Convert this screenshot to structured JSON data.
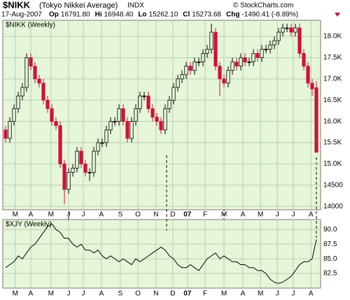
{
  "header": {
    "symbol": "$NIKK",
    "name": "(Tokyo Nikkei Average)",
    "exchange": "INDX",
    "watermark": "© StockCharts.com",
    "date": "17-Aug-2007",
    "quote": [
      {
        "label": "Op",
        "value": "16791.80"
      },
      {
        "label": "Hi",
        "value": "16948.40"
      },
      {
        "label": "Lo",
        "value": "15262.10"
      },
      {
        "label": "Cl",
        "value": "15273.68"
      },
      {
        "label": "Chg",
        "value": "-1490.41 (-8.89%)"
      }
    ]
  },
  "chart_data": [
    {
      "type": "candlestick",
      "title": "$NIKK (Weekly)",
      "up_color": "#000000",
      "down_color": "#d0103a",
      "grid": true,
      "open": [
        15800,
        15600,
        16000,
        16300,
        16600,
        16800,
        17500,
        17300,
        17000,
        16900,
        16500,
        16300,
        16000,
        15900,
        15000,
        14400,
        14800,
        14900,
        15300,
        15000,
        14800,
        14800,
        15300,
        15500,
        15500,
        15800,
        16000,
        16000,
        16300,
        16000,
        15600,
        16000,
        16300,
        16600,
        16600,
        16300,
        16100,
        16000,
        15800,
        16300,
        16500,
        16800,
        17000,
        17100,
        17300,
        17200,
        17400,
        17400,
        17600,
        17700,
        18100,
        17300,
        17000,
        16900,
        17200,
        17400,
        17300,
        17500,
        17400,
        17400,
        17600,
        17500,
        17700,
        17700,
        17800,
        17900,
        18100,
        18200,
        18200,
        18100,
        18200,
        17600,
        17300,
        16900,
        16791.8
      ],
      "high": [
        15900,
        16100,
        16400,
        16700,
        16900,
        17600,
        17600,
        17400,
        17100,
        17000,
        16600,
        16400,
        16100,
        16000,
        15100,
        14900,
        15000,
        15400,
        15400,
        15100,
        14900,
        15400,
        15600,
        15600,
        15900,
        16100,
        16100,
        16400,
        16400,
        16100,
        16100,
        16400,
        16700,
        16700,
        16700,
        16400,
        16200,
        16100,
        16400,
        16600,
        16900,
        17100,
        17200,
        17400,
        17400,
        17500,
        17500,
        17700,
        17800,
        18300,
        18200,
        17400,
        17100,
        17300,
        17500,
        17500,
        17600,
        17600,
        17500,
        17700,
        17700,
        17800,
        17800,
        17900,
        18000,
        18200,
        18300,
        18300,
        18300,
        18300,
        18300,
        17700,
        17400,
        17000,
        16948.4
      ],
      "low": [
        15500,
        15500,
        15900,
        16200,
        16500,
        16700,
        17200,
        16900,
        16800,
        16400,
        16200,
        15900,
        15800,
        14900,
        14050,
        14300,
        14700,
        14800,
        14900,
        14700,
        14600,
        14700,
        15200,
        15400,
        15400,
        15700,
        15900,
        15900,
        15900,
        15500,
        15500,
        15900,
        16200,
        16500,
        16200,
        16000,
        15900,
        15700,
        15700,
        16200,
        16400,
        16700,
        16900,
        17000,
        17100,
        17100,
        17300,
        17300,
        17500,
        17600,
        17200,
        16600,
        16800,
        16800,
        17100,
        17200,
        17200,
        17300,
        17300,
        17300,
        17400,
        17400,
        17600,
        17600,
        17700,
        17800,
        18000,
        18100,
        18000,
        18000,
        17500,
        17200,
        16800,
        16600,
        15262.1
      ],
      "close": [
        15600,
        16000,
        16300,
        16600,
        16800,
        17500,
        17300,
        17000,
        16900,
        16500,
        16300,
        16000,
        15900,
        15000,
        14400,
        14800,
        14900,
        15300,
        15000,
        14800,
        14800,
        15300,
        15500,
        15500,
        15800,
        16000,
        16000,
        16300,
        16000,
        15600,
        16000,
        16300,
        16600,
        16600,
        16300,
        16100,
        16000,
        15800,
        16300,
        16500,
        16800,
        17000,
        17100,
        17300,
        17200,
        17400,
        17400,
        17600,
        17700,
        18100,
        17300,
        17000,
        16900,
        17200,
        17400,
        17300,
        17500,
        17400,
        17400,
        17600,
        17500,
        17700,
        17700,
        17800,
        17900,
        18100,
        18200,
        18200,
        18100,
        18200,
        17600,
        17300,
        16900,
        16764.09,
        15273.68
      ],
      "xlim": [
        -0.67,
        75
      ],
      "ylim": [
        13920,
        18380
      ],
      "yticks": [
        {
          "value": 18000,
          "label": "18.0K"
        },
        {
          "value": 17500,
          "label": "17.5K"
        },
        {
          "value": 17000,
          "label": "17.0K"
        },
        {
          "value": 16500,
          "label": "16.5K"
        },
        {
          "value": 16000,
          "label": "16.0K"
        },
        {
          "value": 15500,
          "label": "15.5K"
        },
        {
          "value": 15000,
          "label": "15.0K"
        },
        14500,
        14000
      ],
      "xticks": [
        {
          "value": 2.3,
          "label": "M"
        },
        {
          "value": 6,
          "label": "A"
        },
        {
          "value": 10.8,
          "label": "M"
        },
        {
          "value": 15,
          "label": "J"
        },
        {
          "value": 18.5,
          "label": "J"
        },
        {
          "value": 22.8,
          "label": "A"
        },
        {
          "value": 27.3,
          "label": "S"
        },
        {
          "value": 31.5,
          "label": "O"
        },
        {
          "value": 35.8,
          "label": "N"
        },
        {
          "value": 39.8,
          "label": "D"
        },
        {
          "value": 43.3,
          "label": "07"
        },
        {
          "value": 47.5,
          "label": "F"
        },
        {
          "value": 52,
          "label": "M"
        },
        {
          "value": 56.5,
          "label": "A"
        },
        {
          "value": 60.7,
          "label": "M"
        },
        {
          "value": 64.7,
          "label": "J"
        },
        {
          "value": 68.5,
          "label": "J"
        },
        {
          "value": 72.7,
          "label": "A"
        }
      ]
    },
    {
      "type": "line",
      "title": "$XJY (Weekly)",
      "color": "#000000",
      "grid": true,
      "values": [
        83.5,
        84,
        84.5,
        85.5,
        85,
        86,
        87,
        87.5,
        88.5,
        89.5,
        90.5,
        91,
        90,
        89.5,
        88.5,
        88.5,
        87.5,
        87,
        87.5,
        86.5,
        86.5,
        86,
        86.5,
        85.5,
        85,
        85.5,
        85,
        84.5,
        85,
        84.5,
        84,
        85,
        84.5,
        85,
        85.5,
        86,
        86.5,
        87,
        86.5,
        85.5,
        85,
        84,
        83.5,
        83.5,
        84,
        83.5,
        83,
        84,
        85,
        85.5,
        86,
        85,
        85.5,
        85,
        84.5,
        84.5,
        84,
        84,
        83.5,
        83.5,
        83,
        83,
        82.5,
        81.5,
        81,
        80.8,
        81,
        81.5,
        82,
        83,
        84,
        84.5,
        84.5,
        85,
        88.3
      ],
      "xlim": [
        -0.67,
        75
      ],
      "ylim": [
        80,
        91.7
      ],
      "yticks": [
        {
          "value": 90,
          "label": "90.0"
        },
        87.5,
        {
          "value": 85,
          "label": "85.0"
        },
        82.5
      ]
    }
  ]
}
